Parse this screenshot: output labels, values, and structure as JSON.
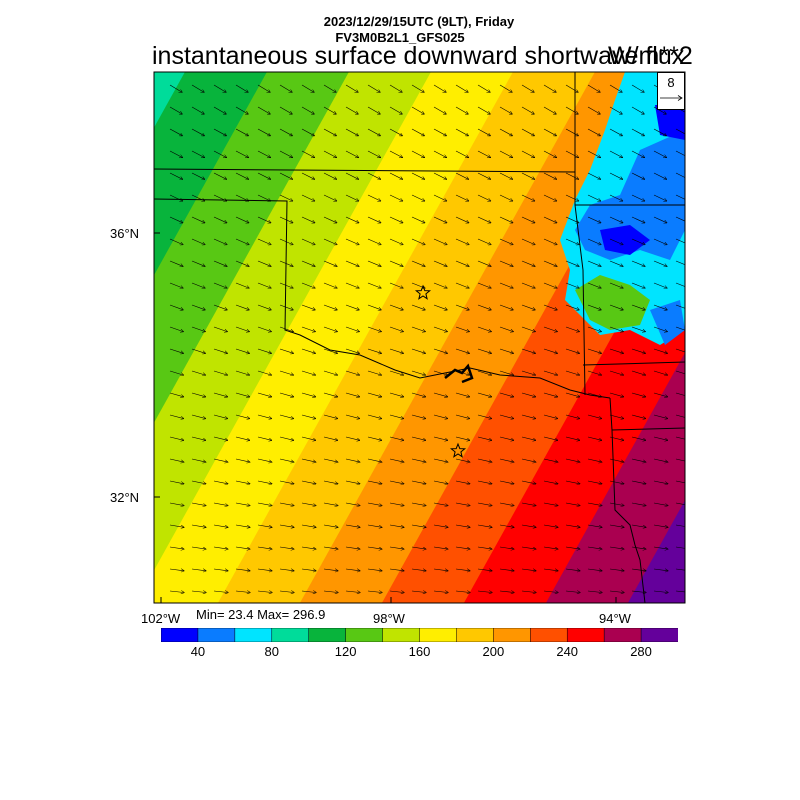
{
  "header": {
    "line1": "2023/12/29/15UTC (9LT), Friday",
    "line2": "FV3M0B2L1_GFS025",
    "title": "instantaneous surface downward shortwave flux",
    "units": "W/m**2"
  },
  "stats": "Min= 23.4 Max= 296.9",
  "reference_vector": "8",
  "axes": {
    "lat_labels": [
      "36°N",
      "32°N"
    ],
    "lon_labels": [
      "102°W",
      "98°W",
      "94°W"
    ]
  },
  "colorbar": {
    "colors": [
      "#0000ff",
      "#0a7cff",
      "#00e4ff",
      "#00dc9a",
      "#08b43c",
      "#58c814",
      "#c0e400",
      "#ffee00",
      "#ffc800",
      "#ff9600",
      "#ff5000",
      "#ff0000",
      "#aa0050",
      "#64009b"
    ],
    "labels": [
      "40",
      "80",
      "120",
      "160",
      "200",
      "240",
      "280"
    ]
  },
  "map": {
    "field": "shortwave flux increasing from northwest to southeast",
    "markers": [
      "star",
      "star"
    ],
    "wind_vectors": "east-southeast"
  }
}
